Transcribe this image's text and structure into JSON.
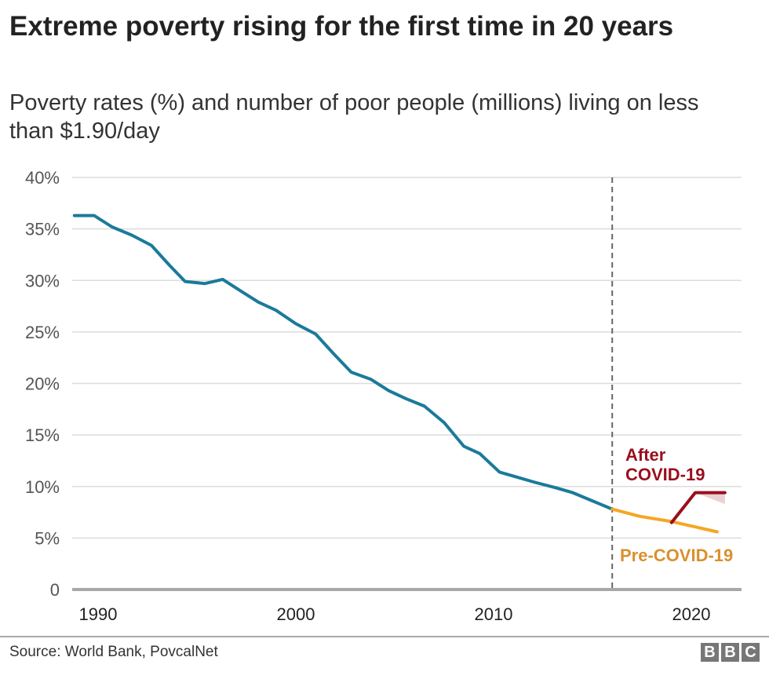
{
  "chart_data": {
    "type": "line",
    "title": "Extreme poverty rising for the first time in 20 years",
    "subtitle": "Poverty rates (%) and number of poor people (millions) living on less than $1.90/day",
    "xlabel": "",
    "ylabel": "",
    "xlim": [
      1987.8,
      2022.6
    ],
    "ylim": [
      0,
      40
    ],
    "y_ticks": [
      0,
      5,
      10,
      15,
      20,
      25,
      30,
      35,
      40
    ],
    "y_tick_labels": [
      "0",
      "5%",
      "10%",
      "15%",
      "20%",
      "25%",
      "30%",
      "35%",
      "40%"
    ],
    "x_ticks": [
      1990,
      2000,
      2010,
      2020
    ],
    "x_tick_labels": [
      "1990",
      "2000",
      "2010",
      "2020"
    ],
    "grid": true,
    "divider_year": 2016,
    "series": [
      {
        "key": "historical",
        "color": "#1b7a9a",
        "points": [
          [
            1988.8,
            36.3
          ],
          [
            1989.8,
            36.3
          ],
          [
            1990.7,
            35.2
          ],
          [
            1991.7,
            34.4
          ],
          [
            1992.7,
            33.4
          ],
          [
            1993.6,
            31.5
          ],
          [
            1994.4,
            29.9
          ],
          [
            1995.4,
            29.7
          ],
          [
            1996.3,
            30.1
          ],
          [
            1997.2,
            29.0
          ],
          [
            1998.1,
            27.9
          ],
          [
            1999.0,
            27.1
          ],
          [
            2000.0,
            25.8
          ],
          [
            2001.0,
            24.8
          ],
          [
            2001.9,
            22.9
          ],
          [
            2002.8,
            21.1
          ],
          [
            2003.8,
            20.4
          ],
          [
            2004.7,
            19.3
          ],
          [
            2005.6,
            18.5
          ],
          [
            2006.5,
            17.8
          ],
          [
            2007.5,
            16.2
          ],
          [
            2008.5,
            13.9
          ],
          [
            2009.3,
            13.2
          ],
          [
            2010.3,
            11.4
          ],
          [
            2011.2,
            10.9
          ],
          [
            2012.1,
            10.4
          ],
          [
            2013.1,
            9.9
          ],
          [
            2014.0,
            9.4
          ],
          [
            2015.0,
            8.6
          ],
          [
            2016.0,
            7.8
          ]
        ]
      },
      {
        "key": "pre_covid",
        "name": "Pre-COVID-19",
        "color": "#f5a623",
        "label_color": "#d8912c",
        "points": [
          [
            2016.0,
            7.8
          ],
          [
            2017.4,
            7.1
          ],
          [
            2019.0,
            6.6
          ],
          [
            2021.3,
            5.6
          ]
        ]
      },
      {
        "key": "after_covid",
        "name": "After COVID-19",
        "color": "#990f1e",
        "points": [
          [
            2019.0,
            6.5
          ],
          [
            2020.2,
            9.4
          ],
          [
            2021.7,
            9.4
          ]
        ],
        "range_band": {
          "color": "#e6c5c8",
          "upper": [
            [
              2020.2,
              9.4
            ],
            [
              2021.7,
              9.4
            ]
          ],
          "lower": [
            [
              2020.2,
              9.4
            ],
            [
              2021.7,
              8.3
            ]
          ]
        }
      }
    ],
    "annotations": [
      {
        "text_lines": [
          "After",
          "COVID-19"
        ],
        "series": "after_covid"
      },
      {
        "text_lines": [
          "Pre-COVID-19"
        ],
        "series": "pre_covid"
      }
    ]
  },
  "footer": {
    "source": "Source: World Bank, PovcalNet",
    "logo": [
      "B",
      "B",
      "C"
    ]
  }
}
